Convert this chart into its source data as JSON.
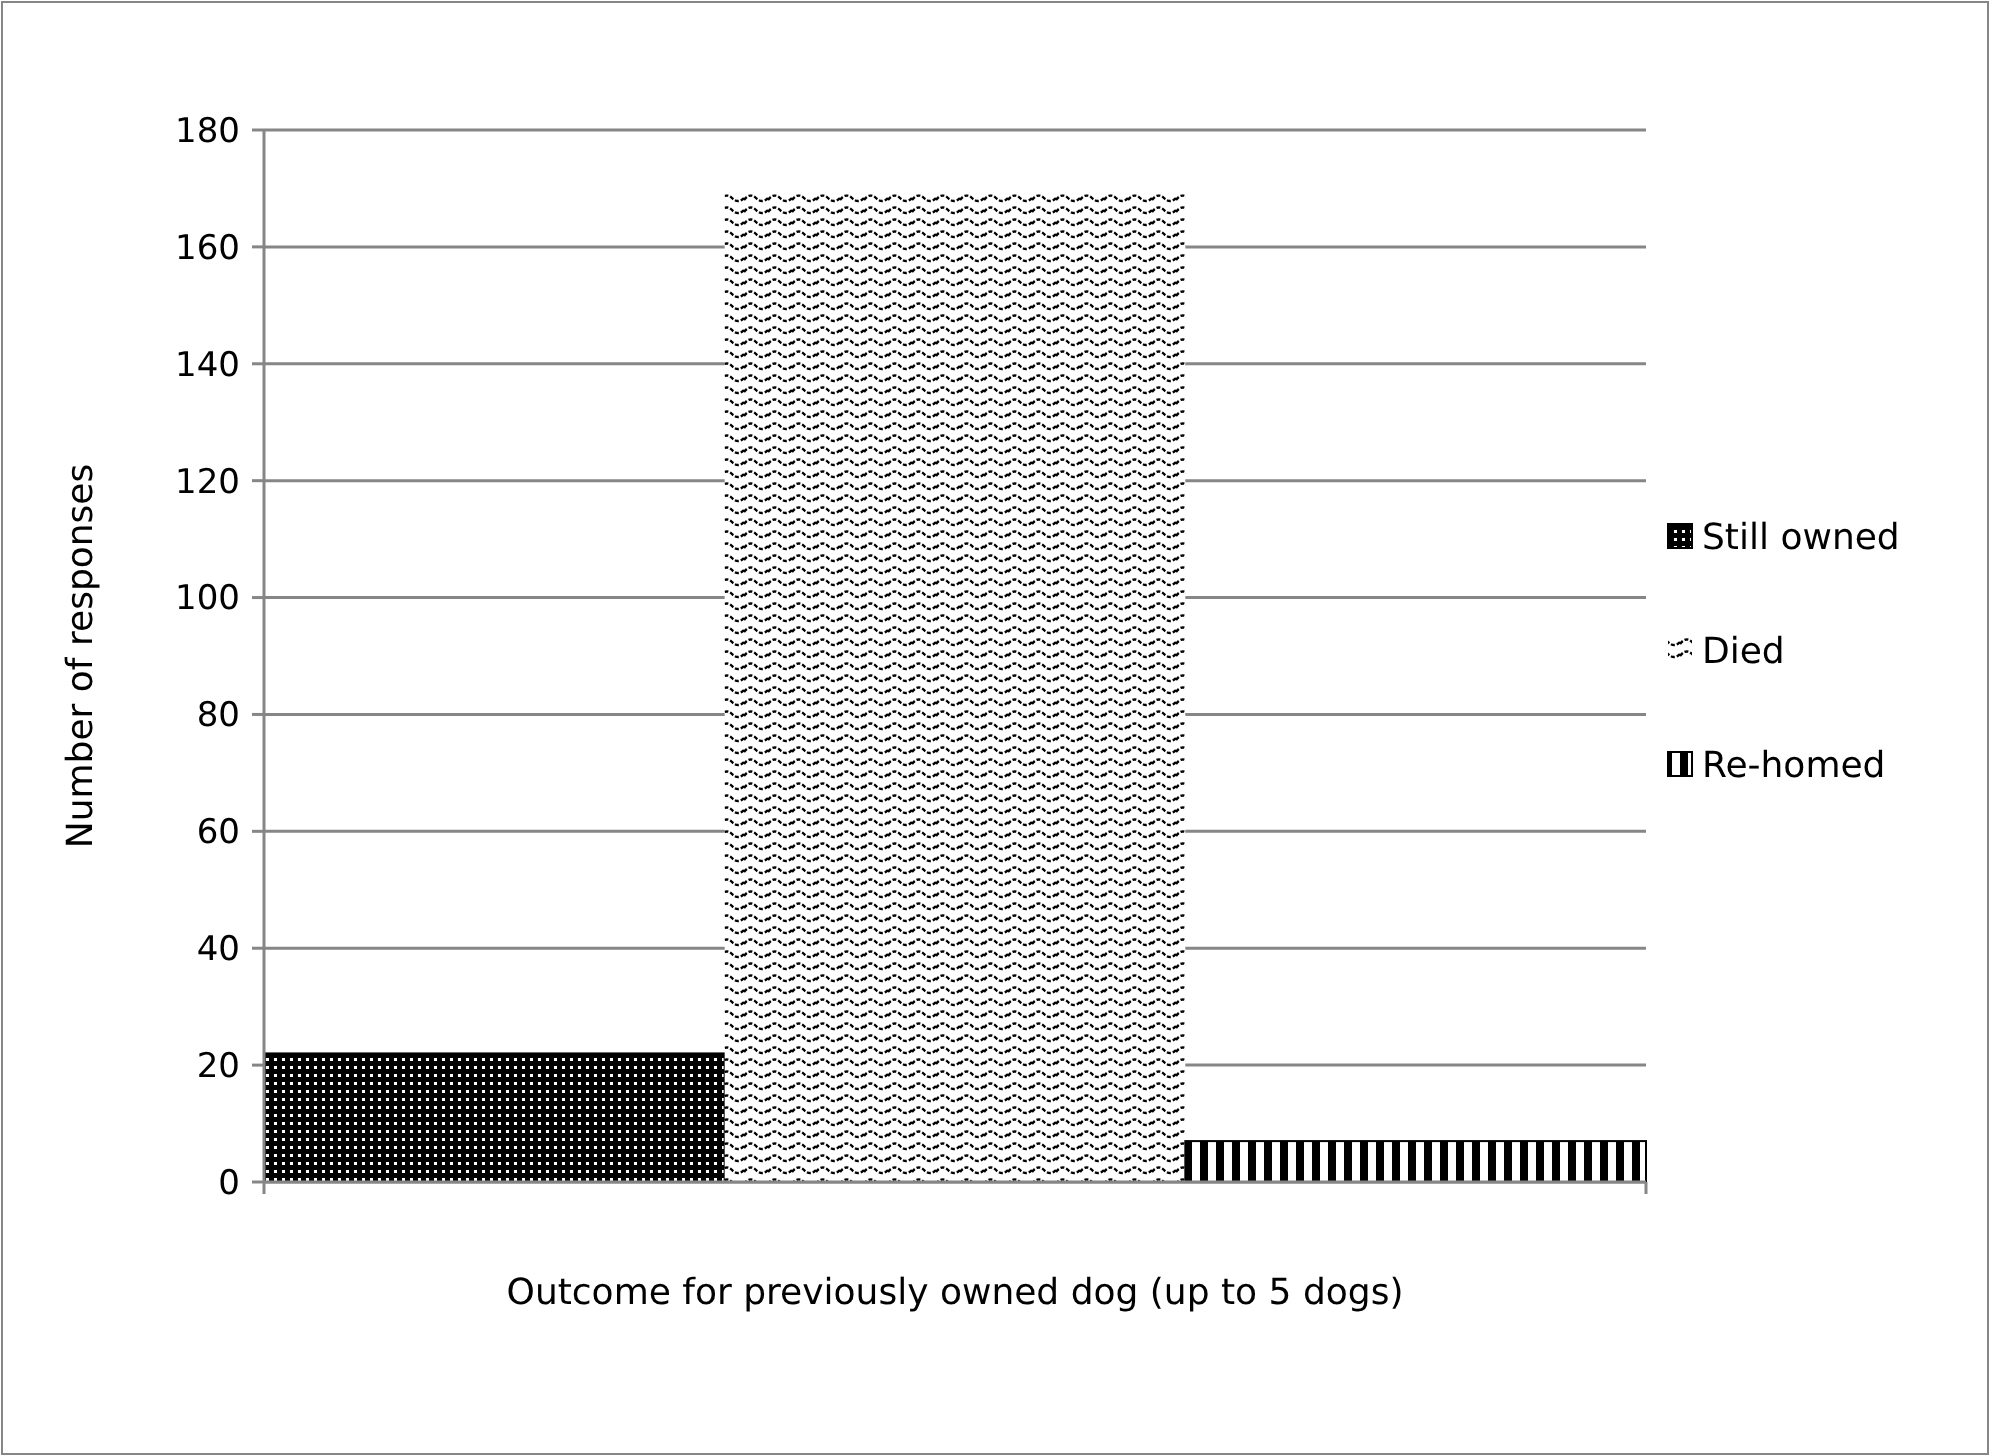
{
  "chart_data": {
    "type": "bar",
    "xlabel": "Outcome for previously owned dog (up to 5 dogs)",
    "ylabel": "Number of responses",
    "categories": [
      null
    ],
    "series": [
      {
        "name": "Still owned",
        "color": "#000000",
        "values": [
          22
        ]
      },
      {
        "name": "Died",
        "color": "#000000",
        "values": [
          169
        ]
      },
      {
        "name": "Re-homed",
        "color": "#000000",
        "values": [
          7
        ]
      }
    ],
    "ylim": [
      0,
      180
    ],
    "yticks": [
      0,
      20,
      40,
      60,
      80,
      100,
      120,
      140,
      160,
      180
    ],
    "grid": "y",
    "legend": "right"
  }
}
